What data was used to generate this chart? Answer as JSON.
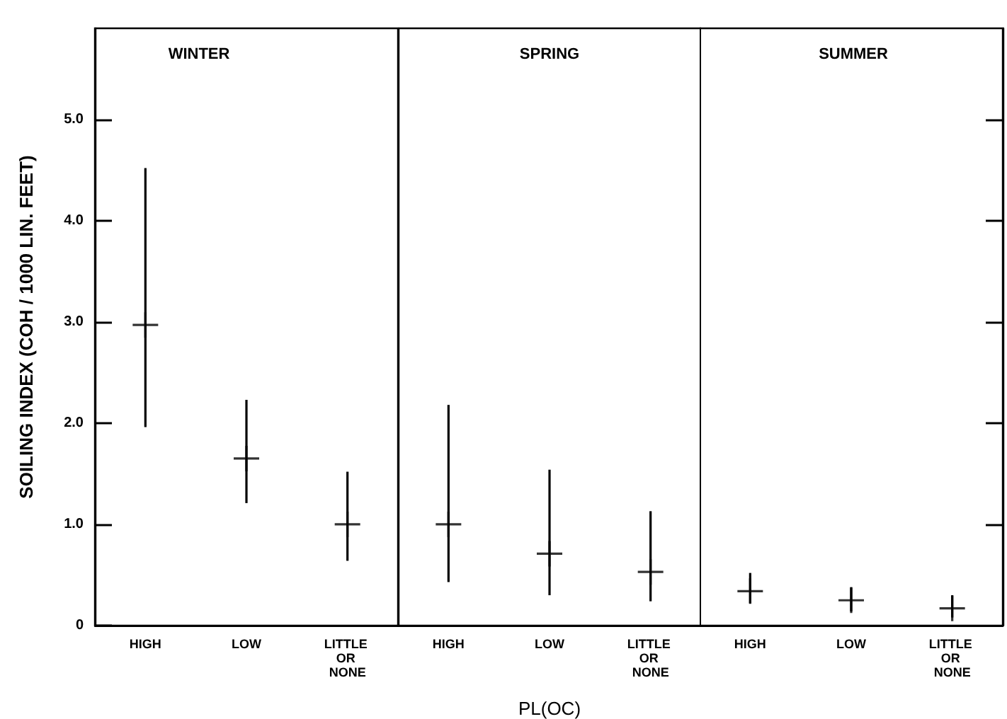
{
  "chart_data": [
    {
      "type": "scatter",
      "title": "WINTER",
      "ylabel": "SOILING INDEX (COH / 1000 LIN. FEET)",
      "categories": [
        "HIGH",
        "LOW",
        "LITTLE OR NONE"
      ],
      "marker": "cross",
      "values": [
        2.97,
        1.65,
        1.0
      ],
      "errors": [
        [
          1.96,
          4.52
        ],
        [
          1.21,
          2.23
        ],
        [
          0.64,
          1.52
        ]
      ],
      "color": "#000000",
      "ylim": [
        0,
        5.9
      ],
      "yticks": [
        0,
        {
          "value": 1,
          "label": "1.0"
        },
        {
          "value": 2,
          "label": "2.0"
        },
        {
          "value": 3,
          "label": "3.0"
        },
        {
          "value": 4,
          "label": "4.0"
        },
        {
          "value": 5,
          "label": "5.0"
        }
      ]
    },
    {
      "type": "scatter",
      "title": "SPRING",
      "xlabel": "PL(OC)",
      "categories": [
        "HIGH",
        "LOW",
        "LITTLE OR NONE"
      ],
      "marker": "cross",
      "values": [
        1.0,
        0.71,
        0.53
      ],
      "errors": [
        [
          0.43,
          2.18
        ],
        [
          0.3,
          1.54
        ],
        [
          0.24,
          1.13
        ]
      ],
      "color": "#000000",
      "ylim": [
        0,
        5.9
      ],
      "tick_labels": "x"
    },
    {
      "type": "scatter",
      "title": "SUMMER",
      "categories": [
        "HIGH",
        "LOW",
        "LITTLE OR NONE"
      ],
      "marker": "cross",
      "values": [
        0.34,
        0.25,
        0.17
      ],
      "errors": [
        [
          0.22,
          0.52
        ],
        [
          0.14,
          0.38
        ],
        [
          0.08,
          0.3
        ]
      ],
      "color": "#000000",
      "ylim": [
        0,
        5.9
      ],
      "yticks": [
        {
          "value": 1,
          "label": null
        },
        {
          "value": 2,
          "label": null
        },
        {
          "value": 3,
          "label": null
        },
        {
          "value": 4,
          "label": null
        },
        {
          "value": 5,
          "label": null
        }
      ],
      "tick_labels": "x"
    }
  ]
}
